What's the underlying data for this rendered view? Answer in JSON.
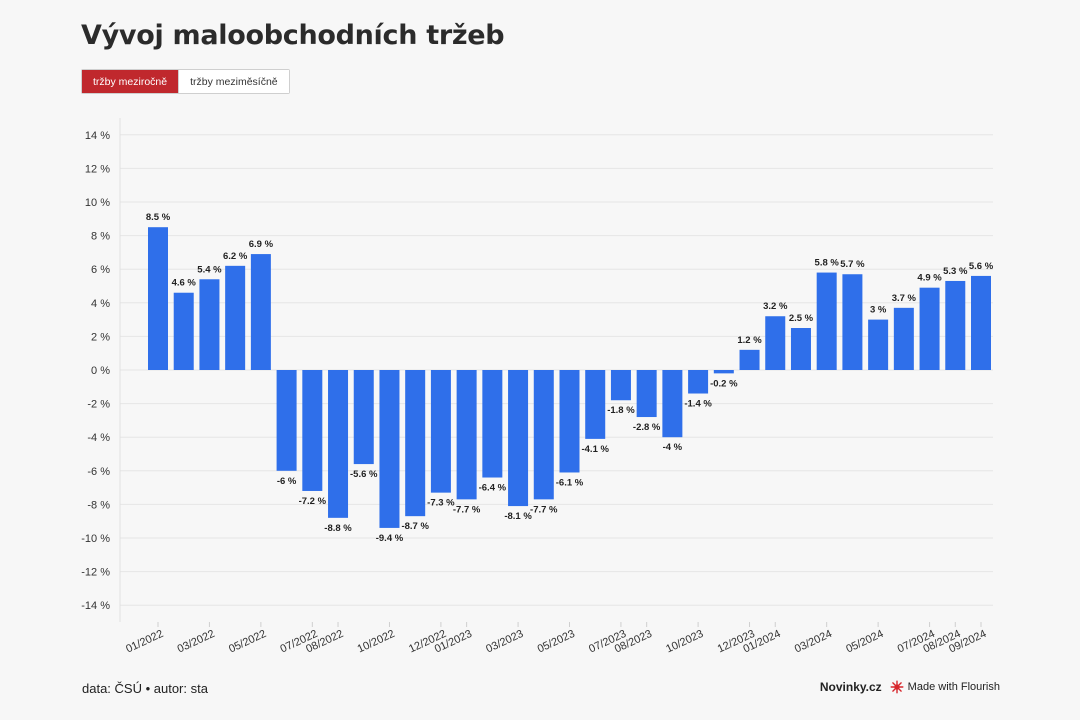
{
  "header": {
    "title": "Vývoj maloobchodních tržeb"
  },
  "toggle": {
    "option_yoy": "tržby meziročně",
    "option_mom": "tržby meziměsíčně",
    "selected": "yoy"
  },
  "footer": {
    "source": "data: ČSÚ • autor: sta",
    "brand": "Novinky.cz",
    "made_with": "Made with Flourish"
  },
  "colors": {
    "bar": "#2f6fea",
    "accent": "#c0282d",
    "grid": "#e6e6e6"
  },
  "chart_data": {
    "type": "bar",
    "title": "Vývoj maloobchodních tržeb",
    "categories": [
      "01/2022",
      "02/2022",
      "03/2022",
      "04/2022",
      "05/2022",
      "06/2022",
      "07/2022",
      "08/2022",
      "09/2022",
      "10/2022",
      "11/2022",
      "12/2022",
      "01/2023",
      "02/2023",
      "03/2023",
      "04/2023",
      "05/2023",
      "06/2023",
      "07/2023",
      "08/2023",
      "09/2023",
      "10/2023",
      "11/2023",
      "12/2023",
      "01/2024",
      "02/2024",
      "03/2024",
      "04/2024",
      "05/2024",
      "06/2024",
      "07/2024",
      "08/2024",
      "09/2024"
    ],
    "x_tick_labels": [
      "01/2022",
      "03/2022",
      "05/2022",
      "07/2022",
      "08/2022",
      "10/2022",
      "12/2022",
      "01/2023",
      "03/2023",
      "05/2023",
      "07/2023",
      "08/2023",
      "10/2023",
      "12/2023",
      "01/2024",
      "03/2024",
      "05/2024",
      "07/2024",
      "08/2024",
      "09/2024"
    ],
    "values": [
      8.5,
      4.6,
      5.4,
      6.2,
      6.9,
      -6,
      -7.2,
      -8.8,
      -5.6,
      -9.4,
      -8.7,
      -7.3,
      -7.7,
      -6.4,
      -8.1,
      -7.7,
      -6.1,
      -4.1,
      -1.8,
      -2.8,
      -4,
      -1.4,
      -0.2,
      1.2,
      3.2,
      2.5,
      5.8,
      5.7,
      3,
      3.7,
      4.9,
      5.3,
      5.6
    ],
    "data_labels": [
      "8.5 %",
      "4.6 %",
      "5.4 %",
      "6.2 %",
      "6.9 %",
      "-6 %",
      "-7.2 %",
      "-8.8 %",
      "-5.6 %",
      "-9.4 %",
      "-8.7 %",
      "-7.3 %",
      "-7.7 %",
      "-6.4 %",
      "-8.1 %",
      "-7.7 %",
      "-6.1 %",
      "-4.1 %",
      "-1.8 %",
      "-2.8 %",
      "-4 %",
      "-1.4 %",
      "-0.2 %",
      "1.2 %",
      "3.2 %",
      "2.5 %",
      "5.8 %",
      "5.7 %",
      "3 %",
      "3.7 %",
      "4.9 %",
      "5.3 %",
      "5.6 %"
    ],
    "y_ticks": [
      14,
      12,
      10,
      8,
      6,
      4,
      2,
      0,
      -2,
      -4,
      -6,
      -8,
      -10,
      -12,
      -14
    ],
    "y_tick_labels": [
      "14 %",
      "12 %",
      "10 %",
      "8 %",
      "6 %",
      "4 %",
      "2 %",
      "0 %",
      "-2 %",
      "-4 %",
      "-6 %",
      "-8 %",
      "-10 %",
      "-12 %",
      "-14 %"
    ],
    "ylim": [
      -15,
      15
    ],
    "grid": true,
    "legend": "none"
  }
}
